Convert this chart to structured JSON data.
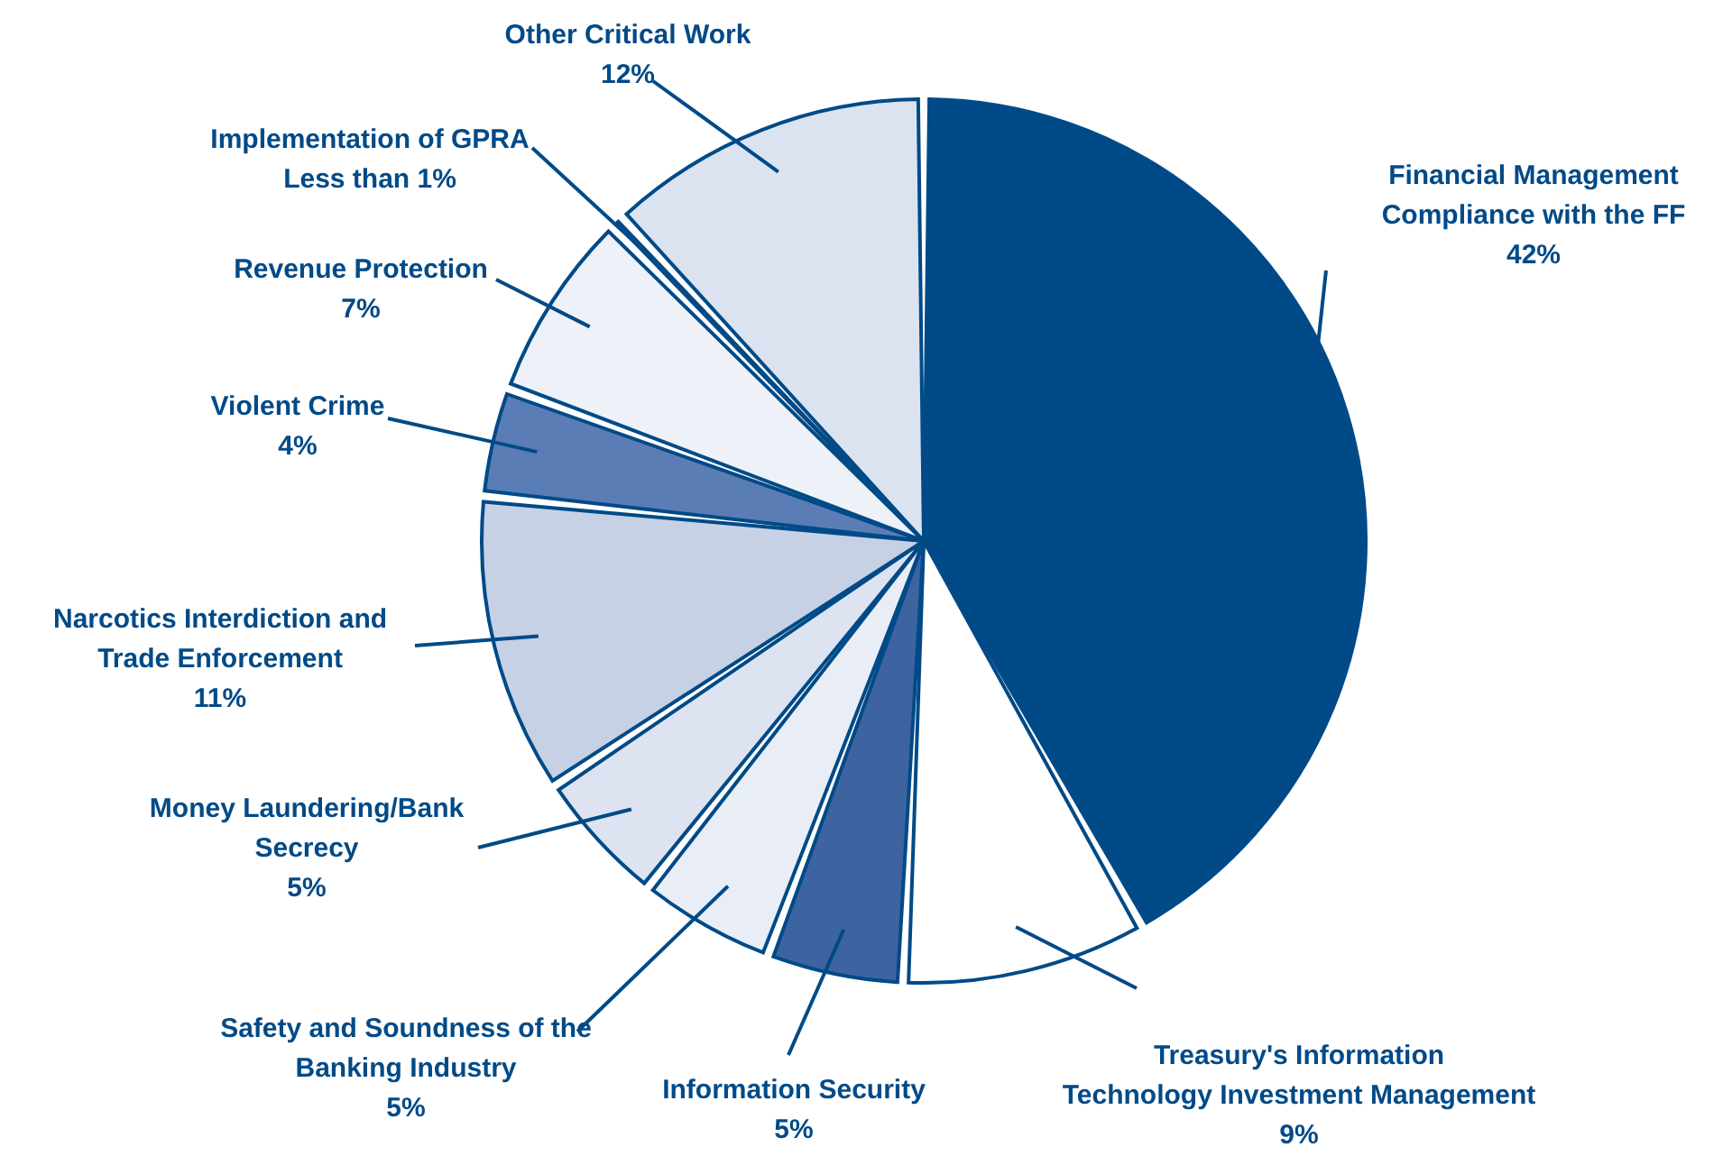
{
  "chart_data": {
    "type": "pie",
    "categories": [
      "Financial Management\nCompliance with the FF",
      "Treasury's Information\nTechnology Investment Management",
      "Information Security",
      "Safety and Soundness of the\nBanking Industry",
      "Money Laundering/Bank\nSecrecy",
      "Narcotics Interdiction and\nTrade Enforcement",
      "Violent Crime",
      "Revenue Protection",
      "Implementation of GPRA",
      "Other Critical Work"
    ],
    "values": [
      42,
      9,
      5,
      5,
      5,
      11,
      4,
      7,
      0.5,
      12
    ],
    "value_labels": [
      "42%",
      "9%",
      "5%",
      "5%",
      "5%",
      "11%",
      "4%",
      "7%",
      "Less than 1%",
      "12%"
    ],
    "colors": [
      "#004a87",
      "#ffffff",
      "#3d64a0",
      "#e9eef6",
      "#dde3f0",
      "#c6d1e6",
      "#5a7db5",
      "#eef2f8",
      "#004a87",
      "#dbe3f0"
    ]
  }
}
